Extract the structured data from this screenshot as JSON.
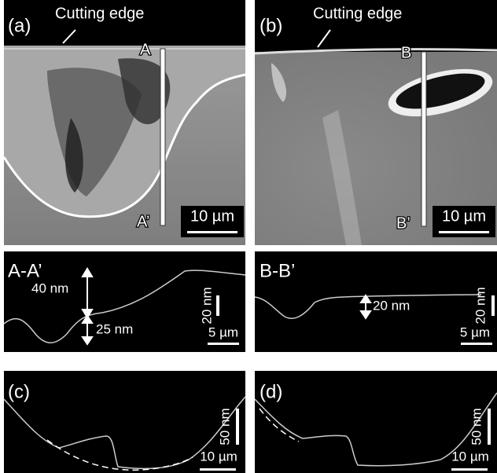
{
  "panels": [
    {
      "label": "(a)",
      "annotation": "Cutting edge",
      "marker_top": "A",
      "marker_bottom": "A’",
      "scale_bar": "10 µm"
    },
    {
      "label": "(b)",
      "annotation": "Cutting edge",
      "marker_top": "B",
      "marker_bottom": "B’",
      "scale_bar": "10 µm"
    }
  ],
  "profiles": [
    {
      "label": "A-A’",
      "annotations": [
        "40 nm",
        "25 nm"
      ],
      "scale_vertical": "20 nm",
      "scale_horizontal": "5 µm"
    },
    {
      "label": "B-B’",
      "annotations": [
        "20 nm"
      ],
      "scale_vertical": "20 nm",
      "scale_horizontal": "5 µm"
    }
  ],
  "sections": [
    {
      "label": "(c)",
      "scale_vertical": "50 nm",
      "scale_horizontal": "10 µm"
    },
    {
      "label": "(d)",
      "scale_vertical": "50 nm",
      "scale_horizontal": "10 µm"
    }
  ]
}
